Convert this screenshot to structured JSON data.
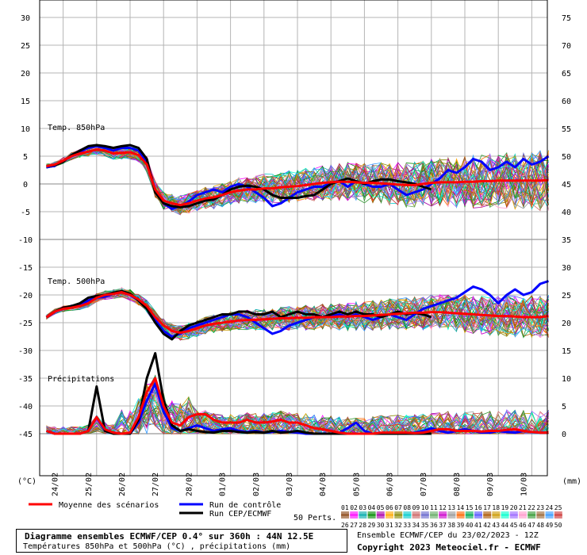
{
  "chart_data": {
    "type": "line",
    "left_axis": {
      "unit_label": "(°C)",
      "ticks": [
        30,
        25,
        20,
        15,
        10,
        5,
        0,
        -5,
        -10,
        -15,
        -20,
        -25,
        -30,
        -35,
        -40,
        -45
      ]
    },
    "right_axis": {
      "unit_label": "(mm)",
      "ticks": [
        75,
        70,
        65,
        60,
        55,
        50,
        45,
        40,
        35,
        30,
        25,
        20,
        15,
        10,
        5,
        0
      ]
    },
    "x_ticks": [
      "24/02",
      "25/02",
      "26/02",
      "27/02",
      "28/02",
      "01/03",
      "02/03",
      "03/03",
      "04/03",
      "05/03",
      "06/03",
      "07/03",
      "08/03",
      "09/03",
      "10/03"
    ],
    "x_range_days": [
      0,
      15
    ],
    "grid": true,
    "panels": [
      {
        "label": "Temp. 850hPa",
        "unit": "°C"
      },
      {
        "label": "Temp. 500hPa",
        "unit": "°C"
      },
      {
        "label": "Précipitations",
        "unit": "mm"
      }
    ],
    "series": [
      {
        "name": "Moyenne des scénarios",
        "color": "#ff0000",
        "panel": "Temp. 850hPa",
        "values": [
          3.2,
          3.5,
          4.2,
          5.0,
          5.5,
          5.8,
          6.2,
          6.0,
          5.5,
          5.6,
          5.7,
          5.2,
          3.5,
          -1.0,
          -3.0,
          -3.5,
          -3.8,
          -3.5,
          -3.0,
          -2.6,
          -2.4,
          -2.0,
          -1.5,
          -1.2,
          -1.0,
          -1.0,
          -0.8,
          -0.8,
          -0.6,
          -0.5,
          -0.4,
          -0.2,
          0.0,
          0.2,
          0.3,
          0.4,
          0.4,
          0.3,
          0.2,
          0.2,
          0.1,
          0.0,
          -0.1,
          -0.2,
          -0.2,
          0.0,
          0.2,
          0.3,
          0.3,
          0.3,
          0.4,
          0.4,
          0.5,
          0.5,
          0.6,
          0.6,
          0.6,
          0.6,
          0.6,
          0.6,
          0.7
        ]
      },
      {
        "name": "Run CEP/ECMWF",
        "color": "#000000",
        "panel": "Temp. 850hPa",
        "values": [
          3.2,
          3.4,
          4.0,
          5.2,
          6.0,
          6.8,
          7.0,
          6.8,
          6.5,
          6.8,
          7.0,
          6.5,
          4.5,
          -1.5,
          -3.5,
          -4.0,
          -4.2,
          -4.0,
          -3.5,
          -3.0,
          -2.8,
          -2.0,
          -1.0,
          -0.5,
          -0.3,
          -0.5,
          -1.0,
          -2.0,
          -2.5,
          -2.5,
          -2.5,
          -2.2,
          -2.0,
          -1.0,
          0.0,
          0.5,
          1.0,
          0.5,
          0.0,
          0.5,
          0.8,
          0.8,
          0.5,
          0.3,
          0.0,
          -0.5,
          -1.0
        ]
      },
      {
        "name": "Run de contrôle",
        "color": "#0000ff",
        "panel": "Temp. 850hPa",
        "values": [
          3.0,
          3.3,
          4.2,
          5.0,
          5.8,
          6.5,
          6.8,
          6.5,
          6.0,
          6.5,
          6.5,
          6.0,
          4.0,
          -1.0,
          -3.5,
          -4.5,
          -4.0,
          -3.2,
          -2.0,
          -1.5,
          -1.0,
          -1.5,
          -0.5,
          0.0,
          -0.5,
          -1.5,
          -2.5,
          -4.0,
          -3.5,
          -2.5,
          -1.5,
          -1.0,
          -0.5,
          -0.5,
          0.2,
          0.5,
          -0.5,
          0.5,
          0.0,
          -0.5,
          -0.5,
          0.0,
          -1.0,
          -2.0,
          -1.5,
          -1.0,
          0.0,
          1.0,
          2.5,
          2.0,
          3.0,
          4.5,
          4.0,
          2.5,
          3.0,
          4.0,
          3.0,
          4.5,
          3.5,
          4.0,
          5.0
        ]
      },
      {
        "name": "Moyenne des scénarios",
        "color": "#ff0000",
        "panel": "Temp. 500hPa",
        "values": [
          -24.0,
          -23.0,
          -22.5,
          -22.3,
          -22.0,
          -21.5,
          -20.5,
          -20.0,
          -19.8,
          -19.5,
          -20.0,
          -20.8,
          -22.0,
          -24.0,
          -25.5,
          -26.5,
          -26.8,
          -26.5,
          -26.0,
          -25.5,
          -25.2,
          -25.0,
          -24.8,
          -24.6,
          -24.5,
          -24.5,
          -24.4,
          -24.3,
          -24.2,
          -24.2,
          -24.1,
          -24.1,
          -24.0,
          -24.0,
          -24.0,
          -23.9,
          -23.9,
          -23.8,
          -23.8,
          -23.7,
          -23.6,
          -23.5,
          -23.4,
          -23.3,
          -23.2,
          -23.2,
          -23.1,
          -23.1,
          -23.2,
          -23.3,
          -23.4,
          -23.5,
          -23.6,
          -23.7,
          -23.8,
          -23.8,
          -23.9,
          -24.0,
          -24.0,
          -24.0,
          -23.8
        ]
      },
      {
        "name": "Run CEP/ECMWF",
        "color": "#000000",
        "panel": "Temp. 500hPa",
        "values": [
          -24.0,
          -23.0,
          -22.3,
          -22.0,
          -21.5,
          -20.5,
          -20.2,
          -20.0,
          -19.6,
          -19.3,
          -19.8,
          -21.0,
          -22.5,
          -25.0,
          -27.0,
          -28.0,
          -26.5,
          -25.5,
          -25.0,
          -24.5,
          -24.0,
          -23.5,
          -23.5,
          -23.0,
          -23.0,
          -23.5,
          -23.5,
          -23.0,
          -24.0,
          -23.5,
          -23.0,
          -23.5,
          -23.5,
          -24.0,
          -23.5,
          -23.0,
          -23.5,
          -23.0,
          -23.5,
          -23.5,
          -24.0,
          -23.5,
          -23.0,
          -23.5,
          -23.2,
          -23.5,
          -24.0
        ]
      },
      {
        "name": "Run de contrôle",
        "color": "#0000ff",
        "panel": "Temp. 500hPa",
        "values": [
          -24.0,
          -23.0,
          -22.5,
          -22.2,
          -21.8,
          -21.0,
          -20.5,
          -20.3,
          -19.8,
          -19.5,
          -20.0,
          -21.0,
          -22.5,
          -24.5,
          -26.5,
          -27.5,
          -27.0,
          -26.0,
          -25.5,
          -25.0,
          -24.5,
          -24.0,
          -23.5,
          -23.5,
          -24.0,
          -25.0,
          -26.0,
          -27.0,
          -26.5,
          -25.5,
          -25.0,
          -24.5,
          -24.0,
          -24.0,
          -23.8,
          -23.5,
          -24.0,
          -23.5,
          -24.0,
          -24.5,
          -24.0,
          -23.5,
          -24.0,
          -24.5,
          -23.5,
          -22.5,
          -22.0,
          -21.5,
          -21.0,
          -20.5,
          -19.5,
          -18.5,
          -19.0,
          -20.0,
          -21.5,
          -20.0,
          -19.0,
          -20.0,
          -19.5,
          -18.0,
          -17.5
        ]
      },
      {
        "name": "Moyenne des scénarios",
        "color": "#ff0000",
        "panel": "Précipitations",
        "values": [
          0.5,
          0,
          0,
          0,
          0,
          0.5,
          3.0,
          0.8,
          0.2,
          0,
          0.2,
          3.0,
          7.5,
          10.0,
          5.0,
          2.0,
          1.5,
          3.0,
          3.5,
          3.5,
          2.5,
          2.0,
          2.0,
          2.0,
          2.5,
          2.0,
          2.0,
          2.2,
          2.5,
          2.0,
          2.0,
          1.5,
          1.0,
          0.8,
          0.5,
          0.2,
          0,
          0,
          0,
          0,
          0.2,
          0.2,
          0.2,
          0.2,
          0.1,
          0.2,
          0.5,
          0.8,
          0.8,
          0.5,
          0.5,
          0.5,
          0.4,
          0.5,
          0.5,
          0.7,
          0.8,
          0.5,
          0.3,
          0.2,
          0.2
        ]
      },
      {
        "name": "Run CEP/ECMWF",
        "color": "#000000",
        "panel": "Précipitations",
        "values": [
          0.5,
          0,
          0,
          0,
          0,
          0.5,
          8.5,
          0.5,
          0,
          0,
          0,
          2.5,
          10.0,
          14.5,
          6.0,
          1.5,
          0.5,
          0.8,
          0.5,
          0.3,
          0.2,
          0.5,
          0.5,
          0.3,
          0.2,
          0.3,
          0.2,
          0.5,
          0.2,
          0.3,
          0.5,
          0.2,
          0,
          0,
          0,
          0,
          0,
          0,
          0,
          0,
          0,
          0,
          0,
          0,
          0,
          0,
          0
        ]
      },
      {
        "name": "Run de contrôle",
        "color": "#0000ff",
        "panel": "Précipitations",
        "values": [
          0.5,
          0,
          0,
          0,
          0,
          0.5,
          3.0,
          0.5,
          0.2,
          0,
          0,
          2.0,
          6.0,
          9.0,
          4.0,
          1.0,
          0.5,
          1.0,
          1.5,
          1.0,
          0.5,
          0.8,
          1.0,
          0.5,
          0.3,
          0.5,
          0.2,
          0.3,
          0.5,
          0.3,
          0.2,
          0,
          0,
          0,
          0,
          0.2,
          1.0,
          2.0,
          0.5,
          0,
          0,
          0,
          0,
          0,
          0.2,
          0.5,
          1.0,
          0.5,
          0.2,
          0.5,
          0.8,
          0.5,
          0.2,
          0.2,
          0.5,
          0.3,
          0.2,
          0.5,
          0.3,
          0.2,
          0.2
        ]
      }
    ],
    "perturbations_label": "50 Perts.",
    "perturbation_ids": [
      "01",
      "02",
      "03",
      "04",
      "05",
      "06",
      "07",
      "08",
      "09",
      "10",
      "11",
      "12",
      "13",
      "14",
      "15",
      "16",
      "17",
      "18",
      "19",
      "20",
      "21",
      "22",
      "23",
      "24",
      "25",
      "26",
      "27",
      "28",
      "29",
      "30",
      "31",
      "32",
      "33",
      "34",
      "35",
      "36",
      "37",
      "38",
      "39",
      "40",
      "41",
      "42",
      "43",
      "44",
      "45",
      "46",
      "47",
      "48",
      "49",
      "50"
    ]
  },
  "legend": {
    "mean": "Moyenne des scénarios",
    "control": "Run de contrôle",
    "run": "Run CEP/ECMWF",
    "perts": "50 Perts."
  },
  "footer": {
    "title": "Diagramme ensembles ECMWF/CEP 0.4° sur 360h : 44N 12.5E",
    "subtitle": "Températures 850hPa et 500hPa (°C) , précipitations (mm)",
    "run_info": "Ensemble ECMWF/CEP du 23/02/2023 - 12Z",
    "copyright": "Copyright 2023 Meteociel.fr - ECMWF"
  },
  "colors": {
    "mean": "#ff0000",
    "control": "#0000ff",
    "run": "#000000",
    "grid": "#b4b4b4"
  }
}
